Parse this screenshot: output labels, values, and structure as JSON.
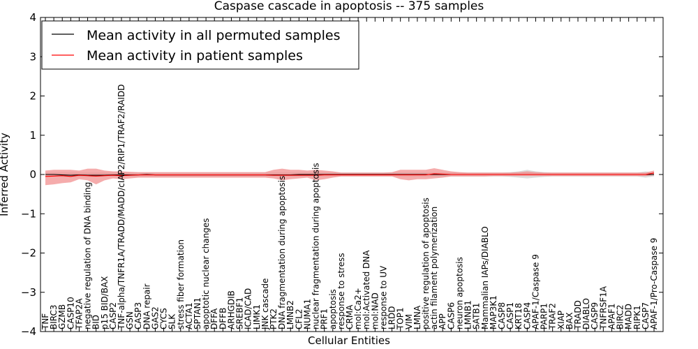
{
  "chart_data": {
    "type": "line",
    "title": "Caspase cascade in apoptosis -- 375 samples",
    "xlabel": "Cellular Entities",
    "ylabel": "Inferred Activity",
    "ylim": [
      -4,
      4
    ],
    "yticks": [
      -4,
      -3,
      -2,
      -1,
      0,
      1,
      2,
      3,
      4
    ],
    "ytick_labels": [
      "−4",
      "−3",
      "−2",
      "−1",
      "0",
      "1",
      "2",
      "3",
      "4"
    ],
    "grid": false,
    "legend_position": "top-left",
    "colors": {
      "permuted": "#000000",
      "patient": "#ff0000",
      "patient_band": "#f08080",
      "permuted_band": "#c8c8c8"
    },
    "categories": [
      "TNF",
      "BIRC3",
      "GZMB",
      "CASP10",
      "TFAP2A",
      "negative regulation of DNA binding",
      "BID",
      "p15 BID/BAX",
      "CASP2",
      "TNF-alpha/TNFR1A/TRADD/MADD/cIAP2/RIP1/TRAF2/RAIDD",
      "GSN",
      "CASP3",
      "DNA repair",
      "GAS2",
      "CYCS",
      "SLK",
      "stress fiber formation",
      "ACTA1",
      "SPTAN1",
      "apoptotic nuclear changes",
      "DFFA",
      "DFFB",
      "ARHGDIB",
      "SREBF1",
      "ICAD/CAD",
      "LIMK1",
      "JNK cascade",
      "PTK2",
      "DNA fragmentation during apoptosis",
      "LMNB2",
      "CFL2",
      "NUMA1",
      "nuclear fragmentation during apoptosis",
      "PRF1",
      "apoptosis",
      "response to stress",
      "CRMA",
      "mol:Ca2+",
      "mol:Activated DNA",
      "mol:NAD",
      "response to UV",
      "LRDD",
      "TOP1",
      "VIM",
      "LMNA",
      "positive regulation of apoptosis",
      "actin filament polymerization",
      "APP",
      "CASP6",
      "neuron apoptosis",
      "LMNB1",
      "SATB1",
      "Mammalian IAPs/DIABLO",
      "MAP3K1",
      "CASP8",
      "CASP1",
      "KRT18",
      "CASP4",
      "APAF-1/Caspase 9",
      "PARP1",
      "TRAF2",
      "XIAP",
      "BAX",
      "TRADD",
      "DIABLO",
      "CASP9",
      "TNFRSF1A",
      "APAF1",
      "BIRC2",
      "MADD",
      "RIPK1",
      "CASP7",
      "APAF-1/Pro-Caspase 9"
    ],
    "series": [
      {
        "name": "Mean activity in all permuted samples",
        "color": "#000000",
        "values": [
          0.0,
          0.0,
          -0.01,
          -0.02,
          -0.01,
          -0.02,
          -0.02,
          -0.02,
          -0.01,
          -0.01,
          -0.01,
          -0.01,
          0.0,
          -0.01,
          -0.01,
          -0.01,
          -0.01,
          -0.01,
          -0.01,
          -0.01,
          -0.01,
          -0.01,
          -0.01,
          -0.01,
          -0.01,
          -0.01,
          -0.01,
          -0.01,
          -0.01,
          -0.01,
          0.0,
          0.0,
          0.0,
          0.0,
          0.0,
          0.0,
          0.0,
          0.0,
          0.0,
          0.0,
          0.0,
          0.0,
          0.0,
          0.0,
          0.0,
          0.0,
          0.0,
          0.0,
          0.0,
          0.0,
          0.0,
          0.0,
          0.0,
          0.0,
          0.0,
          0.0,
          0.0,
          0.0,
          0.0,
          0.0,
          0.0,
          0.0,
          0.0,
          0.0,
          0.0,
          0.0,
          0.0,
          0.0,
          0.0,
          0.0,
          0.0,
          0.0,
          0.0
        ],
        "lower": [
          -0.05,
          -0.05,
          -0.06,
          -0.07,
          -0.06,
          -0.06,
          -0.06,
          -0.05,
          -0.05,
          -0.05,
          -0.05,
          -0.05,
          -0.05,
          -0.05,
          -0.05,
          -0.05,
          -0.05,
          -0.05,
          -0.05,
          -0.05,
          -0.05,
          -0.05,
          -0.05,
          -0.05,
          -0.05,
          -0.05,
          -0.05,
          -0.05,
          -0.05,
          -0.05,
          -0.05,
          -0.05,
          -0.05,
          -0.05,
          -0.05,
          -0.05,
          -0.05,
          -0.05,
          -0.05,
          -0.05,
          -0.05,
          -0.05,
          -0.05,
          -0.05,
          -0.05,
          -0.05,
          -0.05,
          -0.05,
          -0.05,
          -0.05,
          -0.05,
          -0.05,
          -0.05,
          -0.05,
          -0.05,
          -0.06,
          -0.08,
          -0.1,
          -0.08,
          -0.06,
          -0.05,
          -0.05,
          -0.05,
          -0.05,
          -0.05,
          -0.05,
          -0.05,
          -0.05,
          -0.05,
          -0.05,
          -0.05,
          -0.08,
          -0.05
        ],
        "upper": [
          0.05,
          0.05,
          0.05,
          0.05,
          0.05,
          0.05,
          0.05,
          0.05,
          0.05,
          0.05,
          0.05,
          0.05,
          0.05,
          0.05,
          0.05,
          0.05,
          0.05,
          0.05,
          0.05,
          0.05,
          0.05,
          0.05,
          0.05,
          0.05,
          0.05,
          0.05,
          0.05,
          0.05,
          0.05,
          0.05,
          0.05,
          0.05,
          0.05,
          0.05,
          0.05,
          0.05,
          0.05,
          0.05,
          0.05,
          0.05,
          0.05,
          0.05,
          0.05,
          0.05,
          0.05,
          0.05,
          0.05,
          0.05,
          0.05,
          0.05,
          0.05,
          0.05,
          0.05,
          0.05,
          0.05,
          0.06,
          0.08,
          0.12,
          0.08,
          0.06,
          0.05,
          0.05,
          0.05,
          0.05,
          0.05,
          0.05,
          0.05,
          0.05,
          0.05,
          0.05,
          0.05,
          0.08,
          0.05
        ]
      },
      {
        "name": "Mean activity in patient samples",
        "color": "#ff0000",
        "values": [
          -0.05,
          -0.04,
          -0.03,
          -0.05,
          -0.02,
          -0.03,
          -0.04,
          -0.03,
          -0.02,
          -0.03,
          -0.02,
          -0.01,
          -0.01,
          -0.01,
          -0.01,
          -0.01,
          -0.01,
          -0.01,
          -0.01,
          -0.01,
          -0.01,
          -0.01,
          -0.01,
          -0.01,
          -0.01,
          -0.01,
          -0.01,
          -0.02,
          -0.02,
          -0.02,
          -0.02,
          -0.02,
          -0.02,
          -0.01,
          -0.01,
          -0.01,
          -0.01,
          -0.01,
          -0.01,
          -0.01,
          -0.01,
          -0.01,
          -0.01,
          -0.01,
          -0.01,
          -0.01,
          0.02,
          0.01,
          0.0,
          0.0,
          0.0,
          0.0,
          0.0,
          0.0,
          0.0,
          0.0,
          0.0,
          0.0,
          0.0,
          0.0,
          0.0,
          0.0,
          0.0,
          0.0,
          0.0,
          0.0,
          0.0,
          0.0,
          0.0,
          0.0,
          0.0,
          0.0,
          0.04
        ],
        "lower": [
          -0.27,
          -0.25,
          -0.22,
          -0.2,
          -0.12,
          -0.15,
          -0.25,
          -0.15,
          -0.1,
          -0.12,
          -0.1,
          -0.08,
          -0.08,
          -0.08,
          -0.08,
          -0.08,
          -0.08,
          -0.08,
          -0.08,
          -0.08,
          -0.08,
          -0.08,
          -0.08,
          -0.08,
          -0.08,
          -0.08,
          -0.08,
          -0.1,
          -0.15,
          -0.12,
          -0.1,
          -0.08,
          -0.15,
          -0.12,
          -0.08,
          -0.05,
          -0.05,
          -0.05,
          -0.05,
          -0.05,
          -0.05,
          -0.05,
          -0.12,
          -0.15,
          -0.12,
          -0.12,
          -0.1,
          -0.08,
          -0.05,
          -0.05,
          -0.05,
          -0.05,
          -0.05,
          -0.04,
          -0.04,
          -0.04,
          -0.04,
          -0.04,
          -0.04,
          -0.04,
          -0.04,
          -0.04,
          -0.04,
          -0.04,
          -0.04,
          -0.04,
          -0.04,
          -0.04,
          -0.04,
          -0.04,
          -0.04,
          -0.04,
          -0.02
        ],
        "upper": [
          0.1,
          0.12,
          0.12,
          0.12,
          0.1,
          0.15,
          0.15,
          0.1,
          0.08,
          0.08,
          0.07,
          0.06,
          0.06,
          0.06,
          0.06,
          0.06,
          0.06,
          0.06,
          0.06,
          0.06,
          0.06,
          0.06,
          0.06,
          0.06,
          0.06,
          0.06,
          0.06,
          0.12,
          0.15,
          0.12,
          0.12,
          0.1,
          0.12,
          0.1,
          0.08,
          0.05,
          0.05,
          0.05,
          0.05,
          0.05,
          0.05,
          0.06,
          0.12,
          0.12,
          0.12,
          0.12,
          0.16,
          0.12,
          0.08,
          0.06,
          0.05,
          0.05,
          0.05,
          0.05,
          0.05,
          0.05,
          0.06,
          0.08,
          0.06,
          0.05,
          0.05,
          0.05,
          0.05,
          0.05,
          0.05,
          0.05,
          0.05,
          0.05,
          0.05,
          0.05,
          0.05,
          0.05,
          0.1
        ]
      }
    ]
  }
}
